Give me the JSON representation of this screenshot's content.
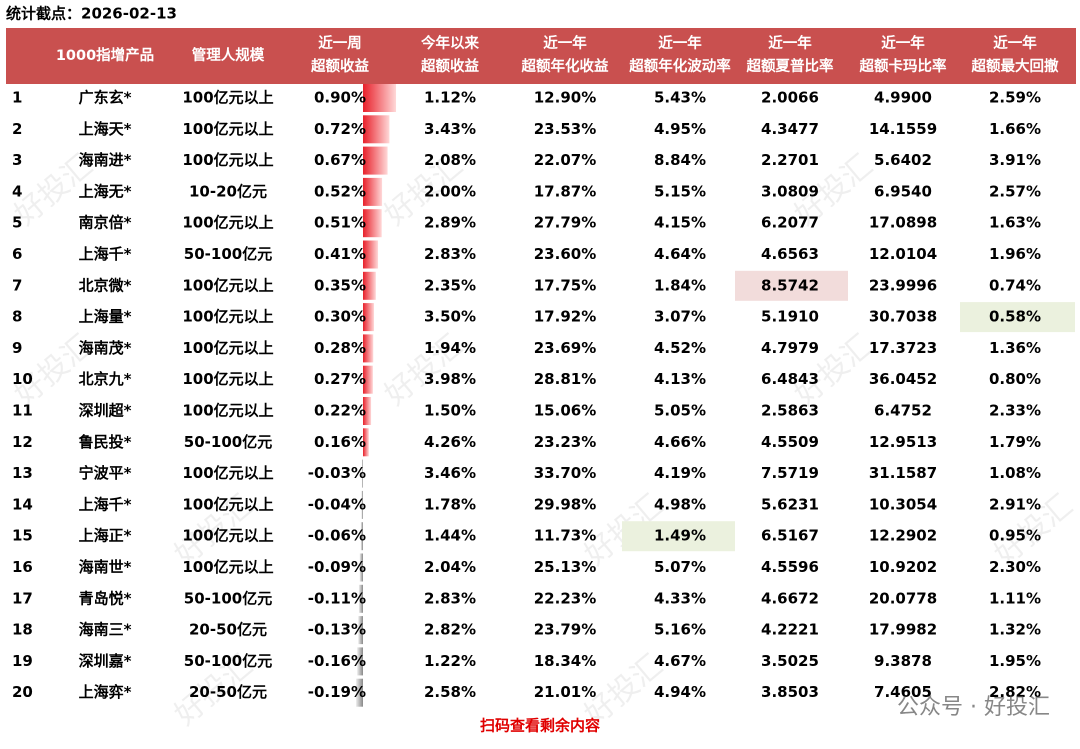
{
  "header": {
    "title": "统计截点：2026-02-13"
  },
  "table": {
    "columns": [
      [
        "1000指增产品"
      ],
      [
        "管理人规模"
      ],
      [
        "近一周",
        "超额收益"
      ],
      [
        "今年以来",
        "超额收益"
      ],
      [
        "近一年",
        "超额年化收益"
      ],
      [
        "近一年",
        "超额年化波动率"
      ],
      [
        "近一年",
        "超额夏普比率"
      ],
      [
        "近一年",
        "超额卡玛比率"
      ],
      [
        "近一年",
        "超额最大回撤"
      ]
    ],
    "rows": [
      [
        "1",
        "广东玄*",
        "100亿元以上",
        "0.90%",
        "1.12%",
        "12.90%",
        "5.43%",
        "2.0066",
        "4.9900",
        "2.59%"
      ],
      [
        "2",
        "上海天*",
        "100亿元以上",
        "0.72%",
        "3.43%",
        "23.53%",
        "4.95%",
        "4.3477",
        "14.1559",
        "1.66%"
      ],
      [
        "3",
        "海南进*",
        "100亿元以上",
        "0.67%",
        "2.08%",
        "22.07%",
        "8.84%",
        "2.2701",
        "5.6402",
        "3.91%"
      ],
      [
        "4",
        "上海无*",
        "10-20亿元",
        "0.52%",
        "2.00%",
        "17.87%",
        "5.15%",
        "3.0809",
        "6.9540",
        "2.57%"
      ],
      [
        "5",
        "南京倍*",
        "100亿元以上",
        "0.51%",
        "2.89%",
        "27.79%",
        "4.15%",
        "6.2077",
        "17.0898",
        "1.63%"
      ],
      [
        "6",
        "上海千*",
        "50-100亿元",
        "0.41%",
        "2.83%",
        "23.60%",
        "4.64%",
        "4.6563",
        "12.0104",
        "1.96%"
      ],
      [
        "7",
        "北京微*",
        "100亿元以上",
        "0.35%",
        "2.35%",
        "17.75%",
        "1.84%",
        "8.5742",
        "23.9996",
        "0.74%"
      ],
      [
        "8",
        "上海量*",
        "100亿元以上",
        "0.30%",
        "3.50%",
        "17.92%",
        "3.07%",
        "5.1910",
        "30.7038",
        "0.58%"
      ],
      [
        "9",
        "海南茂*",
        "100亿元以上",
        "0.28%",
        "1.94%",
        "23.69%",
        "4.52%",
        "4.7979",
        "17.3723",
        "1.36%"
      ],
      [
        "10",
        "北京九*",
        "100亿元以上",
        "0.27%",
        "3.98%",
        "28.81%",
        "4.13%",
        "6.4843",
        "36.0452",
        "0.80%"
      ],
      [
        "11",
        "深圳超*",
        "100亿元以上",
        "0.22%",
        "1.50%",
        "15.06%",
        "5.05%",
        "2.5863",
        "6.4752",
        "2.33%"
      ],
      [
        "12",
        "鲁民投*",
        "50-100亿元",
        "0.16%",
        "4.26%",
        "23.23%",
        "4.66%",
        "4.5509",
        "12.9513",
        "1.79%"
      ],
      [
        "13",
        "宁波平*",
        "100亿元以上",
        "-0.03%",
        "3.46%",
        "33.70%",
        "4.19%",
        "7.5719",
        "31.1587",
        "1.08%"
      ],
      [
        "14",
        "上海千*",
        "100亿元以上",
        "-0.04%",
        "1.78%",
        "29.98%",
        "4.98%",
        "5.6231",
        "10.3054",
        "2.91%"
      ],
      [
        "15",
        "上海正*",
        "100亿元以上",
        "-0.06%",
        "1.44%",
        "11.73%",
        "1.49%",
        "6.5167",
        "12.2902",
        "0.95%"
      ],
      [
        "16",
        "海南世*",
        "100亿元以上",
        "-0.09%",
        "2.04%",
        "25.13%",
        "5.07%",
        "4.5596",
        "10.9202",
        "2.30%"
      ],
      [
        "17",
        "青岛悦*",
        "50-100亿元",
        "-0.11%",
        "2.83%",
        "22.23%",
        "4.33%",
        "4.6672",
        "20.0778",
        "1.11%"
      ],
      [
        "18",
        "海南三*",
        "20-50亿元",
        "-0.13%",
        "2.82%",
        "23.79%",
        "5.16%",
        "4.2221",
        "17.9982",
        "1.32%"
      ],
      [
        "19",
        "深圳嘉*",
        "50-100亿元",
        "-0.16%",
        "1.22%",
        "18.34%",
        "4.67%",
        "3.5025",
        "9.3878",
        "1.95%"
      ],
      [
        "20",
        "上海弈*",
        "20-50亿元",
        "-0.19%",
        "2.58%",
        "21.01%",
        "4.94%",
        "3.8503",
        "7.4605",
        "2.82%"
      ]
    ]
  },
  "footer": {
    "link": "扫码查看剩余内容",
    "brand": "公众号 · 好投汇"
  }
}
